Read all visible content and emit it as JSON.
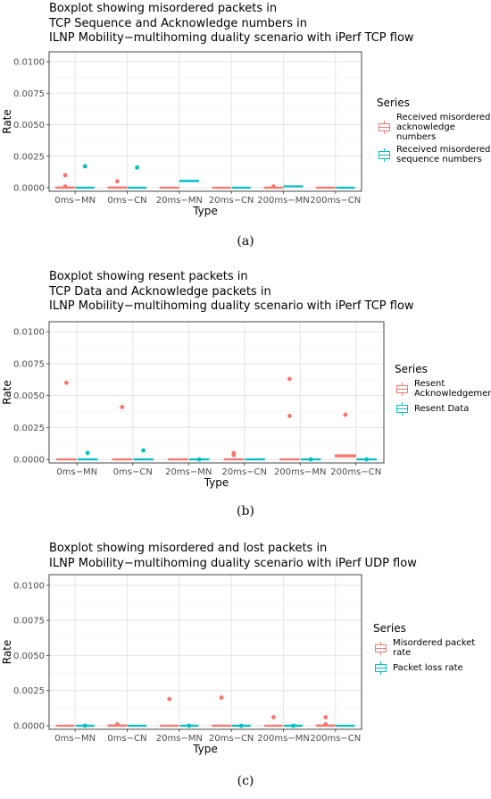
{
  "chart_data": [
    {
      "type": "boxplot",
      "title": "Boxplot showing misordered packets in\nTCP Sequence and Acknowledge numbers in\nILNP Mobility−multihoming duality scenario with iPerf TCP flow",
      "xlabel": "Type",
      "ylabel": "Rate",
      "ylim": [
        0,
        0.0105
      ],
      "yticks": [
        "0.0000",
        "0.0025",
        "0.0050",
        "0.0075",
        "0.0100"
      ],
      "categories": [
        "0ms−MN",
        "0ms−CN",
        "20ms−MN",
        "20ms−CN",
        "200ms−MN",
        "200ms−CN"
      ],
      "legend_title": "Series",
      "legend_position": "right",
      "caption": "(a)",
      "series": [
        {
          "name": "Received misordered acknowledge numbers",
          "color": "#F8766D",
          "boxes": [
            {
              "q1": 0,
              "median": 0,
              "q3": 5e-05,
              "outliers": [
                0.0001,
                0.001
              ]
            },
            {
              "q1": 0,
              "median": 0,
              "q3": 5e-05,
              "outliers": [
                0.0005
              ]
            },
            {
              "q1": 0,
              "median": 0,
              "q3": 3e-05,
              "outliers": []
            },
            {
              "q1": 0,
              "median": 0,
              "q3": 0,
              "outliers": []
            },
            {
              "q1": 0,
              "median": 0,
              "q3": 3e-05,
              "outliers": [
                0.0001
              ]
            },
            {
              "q1": 0,
              "median": 0,
              "q3": 3e-05,
              "outliers": []
            }
          ]
        },
        {
          "name": "Received misordered sequence numbers",
          "color": "#00BFC4",
          "boxes": [
            {
              "q1": 0,
              "median": 0,
              "q3": 0,
              "outliers": [
                0.0017
              ]
            },
            {
              "q1": 0,
              "median": 0,
              "q3": 0,
              "outliers": [
                0.0016
              ]
            },
            {
              "q1": 0.0005,
              "median": 0.00052,
              "q3": 0.00058,
              "outliers": []
            },
            {
              "q1": 0,
              "median": 0,
              "q3": 0,
              "outliers": []
            },
            {
              "q1": 0.0001,
              "median": 0.00011,
              "q3": 0.00013,
              "outliers": []
            },
            {
              "q1": 0,
              "median": 0,
              "q3": 0,
              "outliers": []
            }
          ]
        }
      ]
    },
    {
      "type": "boxplot",
      "title": "Boxplot showing resent packets in\nTCP Data and Acknowledge packets in\nILNP Mobility−multihoming duality scenario with iPerf TCP flow",
      "xlabel": "Type",
      "ylabel": "Rate",
      "ylim": [
        0,
        0.0105
      ],
      "yticks": [
        "0.0000",
        "0.0025",
        "0.0050",
        "0.0075",
        "0.0100"
      ],
      "categories": [
        "0ms−MN",
        "0ms−CN",
        "20ms−MN",
        "20ms−CN",
        "200ms−MN",
        "200ms−CN"
      ],
      "legend_title": "Series",
      "legend_position": "right",
      "caption": "(b)",
      "series": [
        {
          "name": "Resent Acknowledgement",
          "color": "#F8766D",
          "boxes": [
            {
              "q1": 0,
              "median": 0,
              "q3": 0,
              "outliers": [
                0.006
              ]
            },
            {
              "q1": 0,
              "median": 0,
              "q3": 0,
              "outliers": [
                0.0041
              ]
            },
            {
              "q1": 0,
              "median": 0,
              "q3": 0,
              "outliers": []
            },
            {
              "q1": 0,
              "median": 0,
              "q3": 0,
              "outliers": [
                0.00035,
                0.0005
              ]
            },
            {
              "q1": 0,
              "median": 0,
              "q3": 0,
              "outliers": [
                0.0034,
                0.0063
              ]
            },
            {
              "q1": 0.0002,
              "median": 0.0003,
              "q3": 0.00035,
              "outliers": [
                0.0035
              ]
            }
          ]
        },
        {
          "name": "Resent Data",
          "color": "#00BFC4",
          "boxes": [
            {
              "q1": 0,
              "median": 0,
              "q3": 0,
              "outliers": [
                0.0005
              ]
            },
            {
              "q1": 0,
              "median": 0,
              "q3": 0,
              "outliers": [
                0.0007
              ]
            },
            {
              "q1": 0,
              "median": 0,
              "q3": 0,
              "outliers": [
                0
              ]
            },
            {
              "q1": 0,
              "median": 0,
              "q3": 0,
              "outliers": []
            },
            {
              "q1": 0,
              "median": 0,
              "q3": 0,
              "outliers": [
                0
              ]
            },
            {
              "q1": 0,
              "median": 0,
              "q3": 0,
              "outliers": [
                0
              ]
            }
          ]
        }
      ]
    },
    {
      "type": "boxplot",
      "title": "Boxplot showing misordered and lost packets in\nILNP Mobility−multihoming duality scenario with iPerf UDP flow",
      "xlabel": "Type",
      "ylabel": "Rate",
      "ylim": [
        0,
        0.0105
      ],
      "yticks": [
        "0.0000",
        "0.0025",
        "0.0050",
        "0.0075",
        "0.0100"
      ],
      "categories": [
        "0ms−MN",
        "0ms−CN",
        "20ms−MN",
        "20ms−CN",
        "200ms−MN",
        "200ms−CN"
      ],
      "legend_title": "Series",
      "legend_position": "right",
      "caption": "(c)",
      "series": [
        {
          "name": "Misordered packet rate",
          "color": "#F8766D",
          "boxes": [
            {
              "q1": 0,
              "median": 0,
              "q3": 0,
              "outliers": []
            },
            {
              "q1": 0,
              "median": 0,
              "q3": 5e-05,
              "outliers": [
                0.0001
              ]
            },
            {
              "q1": 0,
              "median": 0,
              "q3": 0,
              "outliers": [
                0.0019
              ]
            },
            {
              "q1": 0,
              "median": 0,
              "q3": 3e-05,
              "outliers": [
                0.002
              ]
            },
            {
              "q1": 0,
              "median": 0,
              "q3": 0,
              "outliers": [
                0.0006
              ]
            },
            {
              "q1": 0,
              "median": 0,
              "q3": 5e-05,
              "outliers": [
                0.0001,
                0.0006
              ]
            }
          ]
        },
        {
          "name": "Packet loss rate",
          "color": "#00BFC4",
          "boxes": [
            {
              "q1": 0,
              "median": 0,
              "q3": 0,
              "outliers": [
                0
              ]
            },
            {
              "q1": 0,
              "median": 0,
              "q3": 0,
              "outliers": []
            },
            {
              "q1": 0,
              "median": 0,
              "q3": 0,
              "outliers": [
                0
              ]
            },
            {
              "q1": 0,
              "median": 0,
              "q3": 0,
              "outliers": [
                0
              ]
            },
            {
              "q1": 0,
              "median": 0,
              "q3": 0,
              "outliers": [
                0
              ]
            },
            {
              "q1": 0,
              "median": 0,
              "q3": 0,
              "outliers": []
            }
          ]
        }
      ]
    }
  ]
}
